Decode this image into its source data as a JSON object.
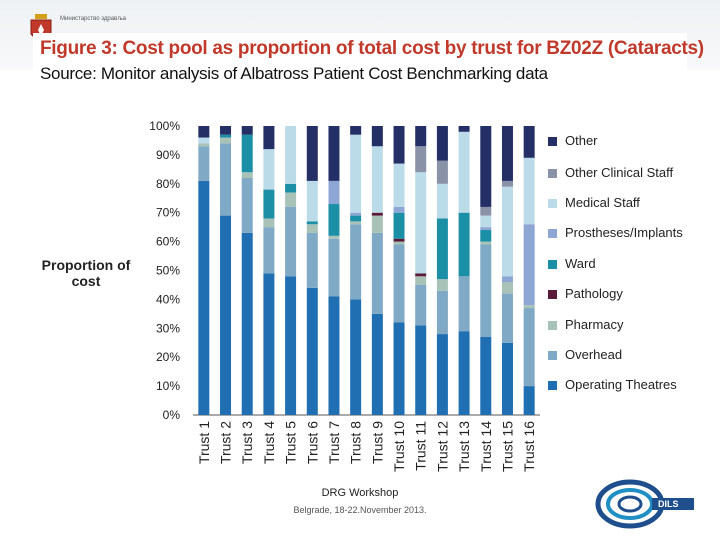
{
  "header": {
    "org_text": "Министарство здравља",
    "title": "Figure 3: Cost pool as proportion of total cost by trust for BZ02Z (Cataracts)",
    "source": "Source: Monitor analysis of Albatross Patient Cost Benchmarking data"
  },
  "chart_data": {
    "type": "bar",
    "stacked": true,
    "ylabel": "Proportion of cost",
    "ylim": [
      0,
      100
    ],
    "yticks": [
      "0%",
      "10%",
      "20%",
      "30%",
      "40%",
      "50%",
      "60%",
      "70%",
      "80%",
      "90%",
      "100%"
    ],
    "categories": [
      "Trust 1",
      "Trust 2",
      "Trust 3",
      "Trust 4",
      "Trust 5",
      "Trust 6",
      "Trust 7",
      "Trust 8",
      "Trust 9",
      "Trust 10",
      "Trust 11",
      "Trust 12",
      "Trust 13",
      "Trust 14",
      "Trust 15",
      "Trust 16"
    ],
    "legend_position": "right",
    "series": [
      {
        "name": "Operating Theatres",
        "color": "#1f6fb2",
        "values": [
          81,
          69,
          63,
          49,
          48,
          44,
          41,
          40,
          35,
          32,
          31,
          28,
          29,
          27,
          25,
          10
        ]
      },
      {
        "name": "Overhead",
        "color": "#7fa9c4",
        "values": [
          12,
          25,
          19,
          16,
          24,
          19,
          20,
          26,
          28,
          27,
          14,
          15,
          19,
          32,
          17,
          27
        ]
      },
      {
        "name": "Pharmacy",
        "color": "#a8c2b8",
        "values": [
          1,
          2,
          2,
          3,
          5,
          3,
          1,
          1,
          6,
          1,
          3,
          4,
          0,
          1,
          4,
          1
        ]
      },
      {
        "name": "Pathology",
        "color": "#5a1a3a",
        "values": [
          0,
          0,
          0,
          0,
          0,
          0,
          0,
          0,
          1,
          1,
          1,
          0,
          0,
          0,
          0,
          0
        ]
      },
      {
        "name": "Ward",
        "color": "#1b8fa6",
        "values": [
          0,
          1,
          13,
          10,
          3,
          1,
          11,
          2,
          0,
          9,
          0,
          21,
          22,
          4,
          0,
          0
        ]
      },
      {
        "name": "Prostheses/Implants",
        "color": "#8ea6d4",
        "values": [
          0,
          0,
          0,
          0,
          0,
          0,
          8,
          1,
          0,
          2,
          0,
          0,
          0,
          1,
          2,
          28
        ]
      },
      {
        "name": "Medical Staff",
        "color": "#bcdbe8",
        "values": [
          2,
          0,
          0,
          14,
          20,
          14,
          0,
          27,
          23,
          15,
          35,
          12,
          28,
          4,
          31,
          23
        ]
      },
      {
        "name": "Other Clinical Staff",
        "color": "#8a92a8",
        "values": [
          0,
          0,
          0,
          0,
          0,
          0,
          0,
          0,
          0,
          0,
          9,
          8,
          0,
          3,
          2,
          0
        ]
      },
      {
        "name": "Other",
        "color": "#242f66",
        "values": [
          4,
          3,
          3,
          8,
          0,
          19,
          19,
          3,
          7,
          13,
          7,
          12,
          2,
          28,
          19,
          11
        ]
      }
    ]
  },
  "legend": {
    "items": [
      {
        "label": "Other",
        "color": "#242f66"
      },
      {
        "label": "Other Clinical Staff",
        "color": "#8a92a8"
      },
      {
        "label": "Medical Staff",
        "color": "#bcdbe8"
      },
      {
        "label": "Prostheses/Implants",
        "color": "#8ea6d4"
      },
      {
        "label": "Ward",
        "color": "#1b8fa6"
      },
      {
        "label": "Pathology",
        "color": "#5a1a3a"
      },
      {
        "label": "Pharmacy",
        "color": "#a8c2b8"
      },
      {
        "label": "Overhead",
        "color": "#7fa9c4"
      },
      {
        "label": "Operating Theatres",
        "color": "#1f6fb2"
      }
    ]
  },
  "footer": {
    "title": "DRG Workshop",
    "subtitle": "Belgrade, 18-22.November 2013.",
    "logo_text": "DILS"
  }
}
